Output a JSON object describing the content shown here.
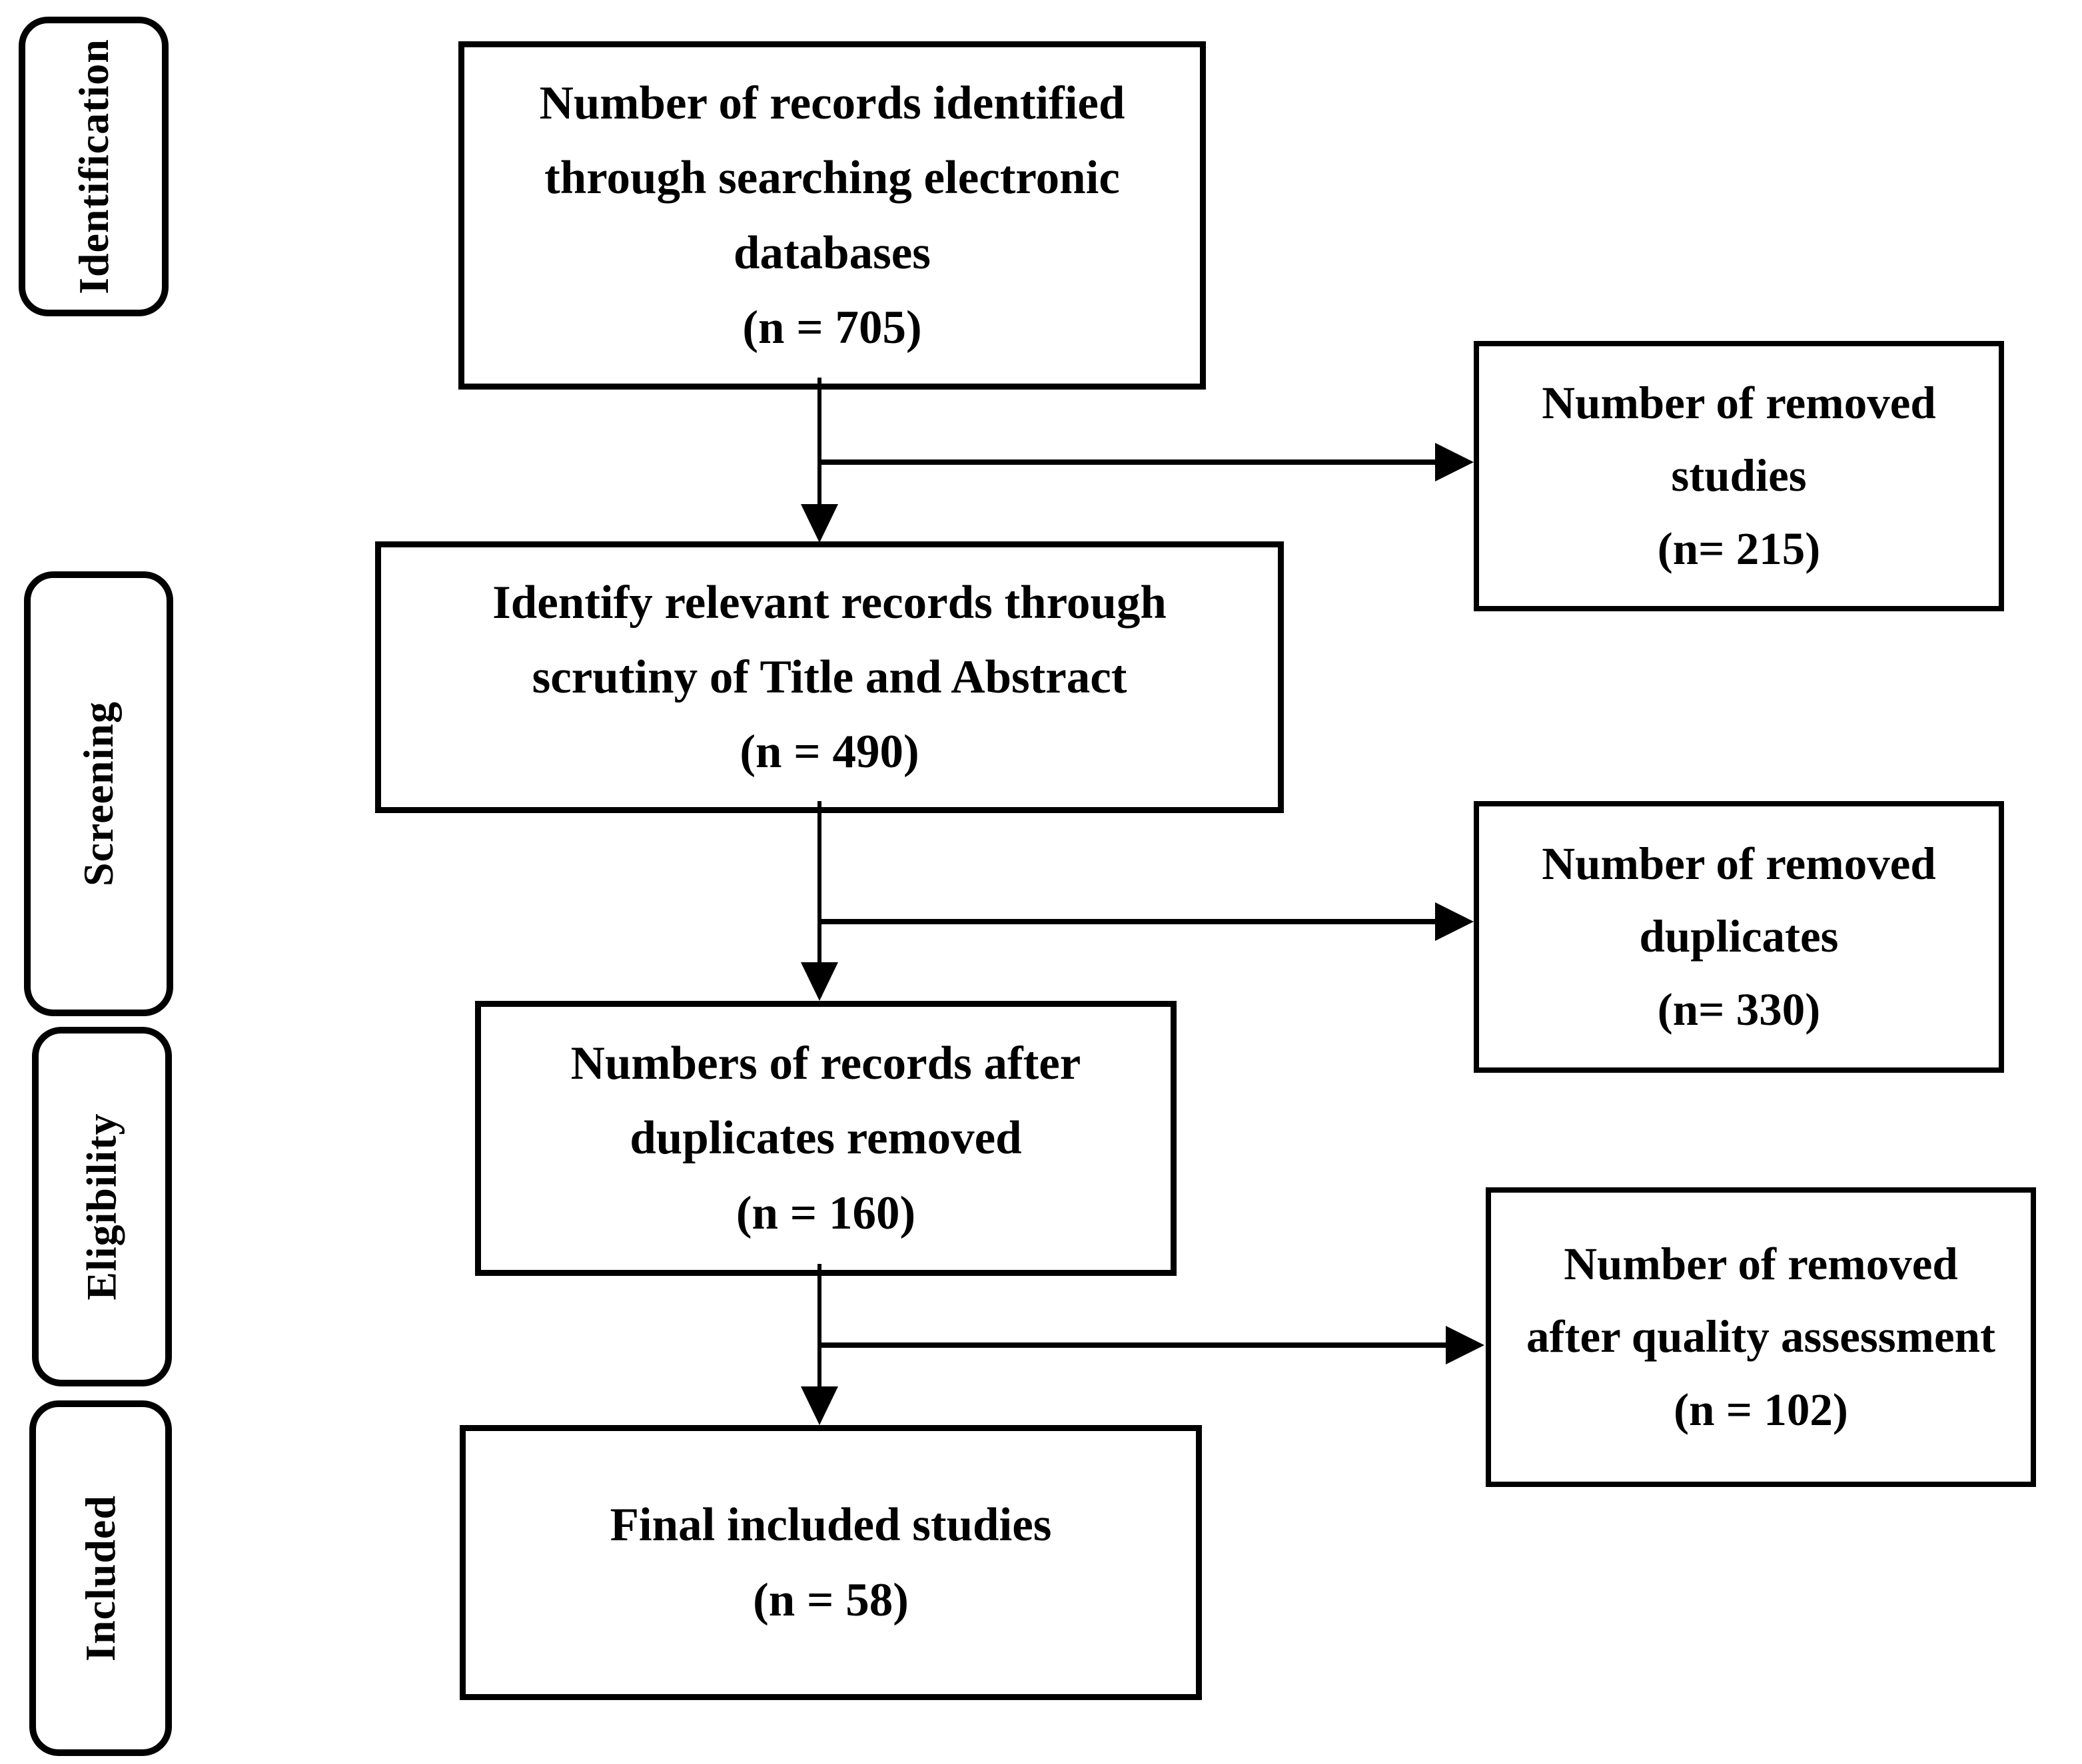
{
  "diagram": {
    "type": "prisma-flowchart",
    "colors": {
      "line": "#000000",
      "background": "#ffffff",
      "text": "#000000"
    },
    "stages": [
      {
        "label": "Identification"
      },
      {
        "label": "Screening"
      },
      {
        "label": "Eligibility"
      },
      {
        "label": "Included"
      }
    ],
    "flow_boxes": [
      {
        "name": "records-identified",
        "lines": [
          "Number of records identified",
          "through searching electronic",
          "databases"
        ],
        "count": "(n = 705)"
      },
      {
        "name": "title-abstract-screening",
        "lines": [
          "Identify relevant records through",
          "scrutiny of Title and Abstract"
        ],
        "count": "(n = 490)"
      },
      {
        "name": "after-duplicates-removed",
        "lines": [
          "Numbers of records after",
          "duplicates removed"
        ],
        "count": "(n = 160)"
      },
      {
        "name": "final-included",
        "lines": [
          "Final included studies"
        ],
        "count": "(n = 58)"
      }
    ],
    "side_boxes": [
      {
        "name": "removed-studies",
        "lines": [
          "Number of removed",
          "studies"
        ],
        "count": "(n= 215)"
      },
      {
        "name": "removed-duplicates",
        "lines": [
          "Number of removed",
          "duplicates"
        ],
        "count": "(n= 330)"
      },
      {
        "name": "removed-after-quality-assessment",
        "lines": [
          "Number of removed",
          "after quality assessment"
        ],
        "count": "(n = 102)"
      }
    ]
  }
}
